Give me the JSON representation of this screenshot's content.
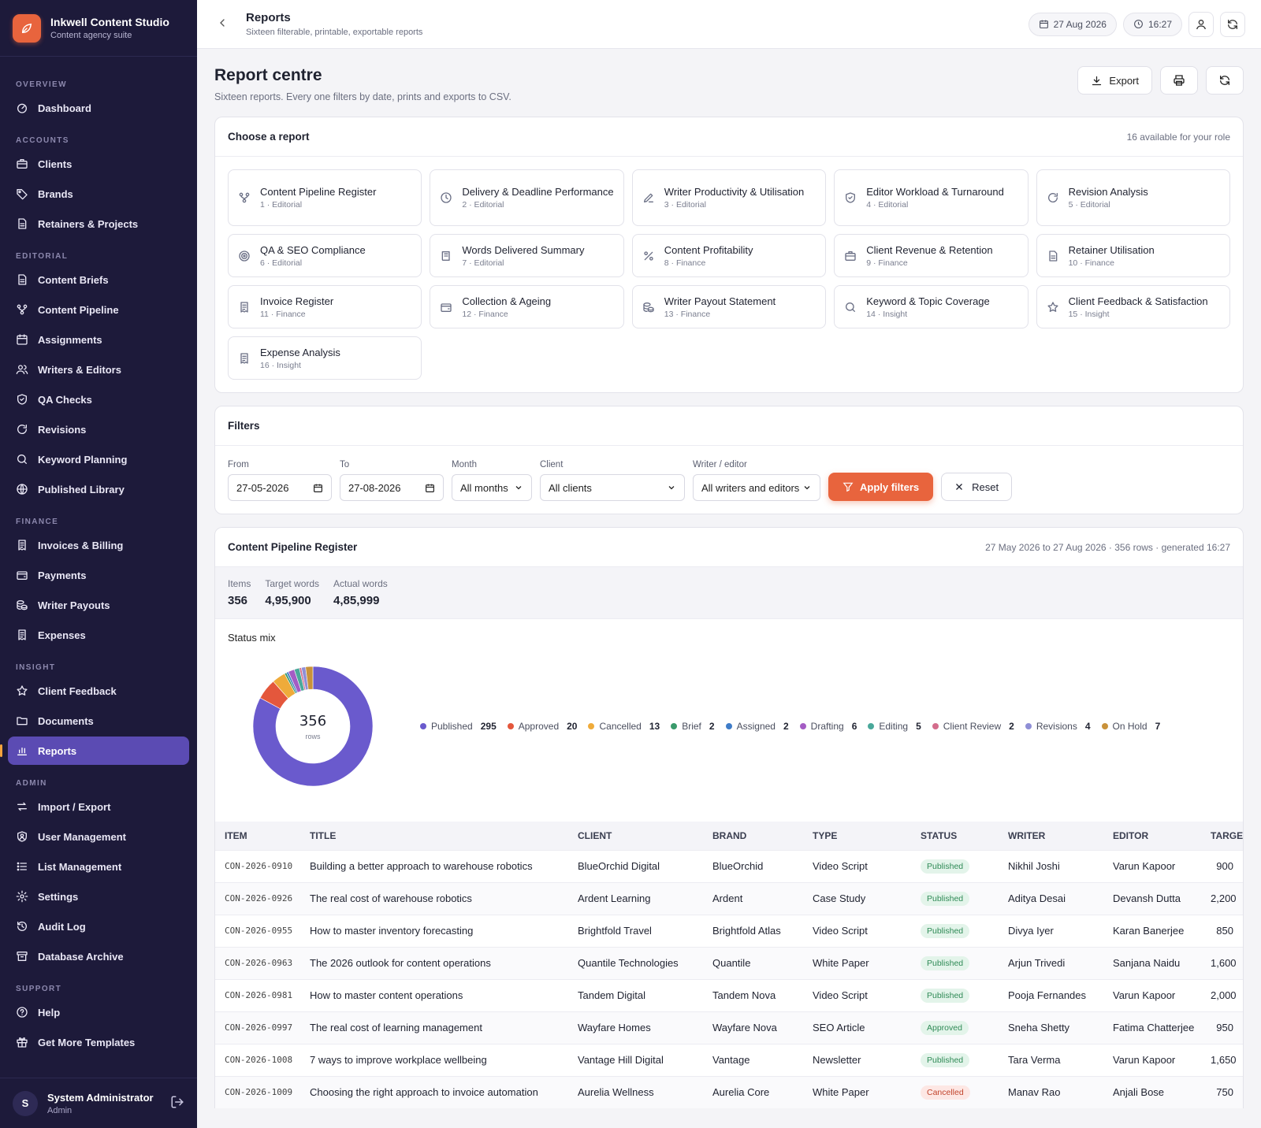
{
  "brand": {
    "title": "Inkwell Content Studio",
    "subtitle": "Content agency suite"
  },
  "nav": {
    "sections": [
      {
        "title": "OVERVIEW",
        "items": [
          {
            "label": "Dashboard",
            "icon": "dashboard-icon"
          }
        ]
      },
      {
        "title": "ACCOUNTS",
        "items": [
          {
            "label": "Clients",
            "icon": "briefcase-icon"
          },
          {
            "label": "Brands",
            "icon": "tag-icon"
          },
          {
            "label": "Retainers & Projects",
            "icon": "document-icon"
          }
        ]
      },
      {
        "title": "EDITORIAL",
        "items": [
          {
            "label": "Content Briefs",
            "icon": "document-icon"
          },
          {
            "label": "Content Pipeline",
            "icon": "workflow-icon"
          },
          {
            "label": "Assignments",
            "icon": "calendar-icon"
          },
          {
            "label": "Writers & Editors",
            "icon": "users-icon"
          },
          {
            "label": "QA Checks",
            "icon": "shield-icon"
          },
          {
            "label": "Revisions",
            "icon": "refresh-icon"
          },
          {
            "label": "Keyword Planning",
            "icon": "search-icon"
          },
          {
            "label": "Published Library",
            "icon": "globe-icon"
          }
        ]
      },
      {
        "title": "FINANCE",
        "items": [
          {
            "label": "Invoices & Billing",
            "icon": "receipt-icon"
          },
          {
            "label": "Payments",
            "icon": "wallet-icon"
          },
          {
            "label": "Writer Payouts",
            "icon": "coins-icon"
          },
          {
            "label": "Expenses",
            "icon": "receipt-icon"
          }
        ]
      },
      {
        "title": "INSIGHT",
        "items": [
          {
            "label": "Client Feedback",
            "icon": "star-icon"
          },
          {
            "label": "Documents",
            "icon": "folder-icon"
          },
          {
            "label": "Reports",
            "icon": "bar-chart-icon",
            "active": true
          }
        ]
      },
      {
        "title": "ADMIN",
        "items": [
          {
            "label": "Import / Export",
            "icon": "arrows-icon"
          },
          {
            "label": "User Management",
            "icon": "user-shield-icon"
          },
          {
            "label": "List Management",
            "icon": "list-icon"
          },
          {
            "label": "Settings",
            "icon": "gear-icon"
          },
          {
            "label": "Audit Log",
            "icon": "history-icon"
          },
          {
            "label": "Database Archive",
            "icon": "archive-icon"
          }
        ]
      },
      {
        "title": "SUPPORT",
        "items": [
          {
            "label": "Help",
            "icon": "help-icon"
          },
          {
            "label": "Get More Templates",
            "icon": "gift-icon"
          }
        ]
      }
    ]
  },
  "user": {
    "initial": "S",
    "name": "System Administrator",
    "role": "Admin"
  },
  "topbar": {
    "title": "Reports",
    "subtitle": "Sixteen filterable, printable, exportable reports",
    "date": "27 Aug 2026",
    "time": "16:27"
  },
  "page": {
    "title": "Report centre",
    "subtitle": "Sixteen reports. Every one filters by date, prints and exports to CSV.",
    "export_label": "Export"
  },
  "chooser": {
    "title": "Choose a report",
    "meta": "16 available for your role",
    "reports": [
      {
        "name": "Content Pipeline Register",
        "meta": "1 · Editorial",
        "icon": "workflow-icon"
      },
      {
        "name": "Delivery & Deadline Performance",
        "meta": "2 · Editorial",
        "icon": "clock-icon"
      },
      {
        "name": "Writer Productivity & Utilisation",
        "meta": "3 · Editorial",
        "icon": "pen-icon"
      },
      {
        "name": "Editor Workload & Turnaround",
        "meta": "4 · Editorial",
        "icon": "shield-icon"
      },
      {
        "name": "Revision Analysis",
        "meta": "5 · Editorial",
        "icon": "refresh-icon"
      },
      {
        "name": "QA & SEO Compliance",
        "meta": "6 · Editorial",
        "icon": "target-icon"
      },
      {
        "name": "Words Delivered Summary",
        "meta": "7 · Editorial",
        "icon": "book-icon"
      },
      {
        "name": "Content Profitability",
        "meta": "8 · Finance",
        "icon": "percent-icon"
      },
      {
        "name": "Client Revenue & Retention",
        "meta": "9 · Finance",
        "icon": "briefcase-icon"
      },
      {
        "name": "Retainer Utilisation",
        "meta": "10 · Finance",
        "icon": "document-icon"
      },
      {
        "name": "Invoice Register",
        "meta": "11 · Finance",
        "icon": "receipt-icon"
      },
      {
        "name": "Collection & Ageing",
        "meta": "12 · Finance",
        "icon": "wallet-icon"
      },
      {
        "name": "Writer Payout Statement",
        "meta": "13 · Finance",
        "icon": "coins-icon"
      },
      {
        "name": "Keyword & Topic Coverage",
        "meta": "14 · Insight",
        "icon": "search-icon"
      },
      {
        "name": "Client Feedback & Satisfaction",
        "meta": "15 · Insight",
        "icon": "star-icon"
      },
      {
        "name": "Expense Analysis",
        "meta": "16 · Insight",
        "icon": "receipt-icon"
      }
    ]
  },
  "filters": {
    "title": "Filters",
    "from_label": "From",
    "from_value": "27-05-2026",
    "to_label": "To",
    "to_value": "27-08-2026",
    "month_label": "Month",
    "month_value": "All months",
    "client_label": "Client",
    "client_value": "All clients",
    "writer_label": "Writer / editor",
    "writer_value": "All writers and editors",
    "apply_label": "Apply filters",
    "reset_label": "Reset"
  },
  "result": {
    "title": "Content Pipeline Register",
    "meta": "27 May 2026 to 27 Aug 2026 · 356 rows · generated 16:27",
    "summary": [
      {
        "label": "Items",
        "value": "356"
      },
      {
        "label": "Target words",
        "value": "4,95,900"
      },
      {
        "label": "Actual words",
        "value": "4,85,999"
      }
    ],
    "chart_title": "Status mix",
    "center_value": "356",
    "center_label": "rows"
  },
  "chart_data": {
    "type": "pie",
    "title": "Status mix",
    "categories": [
      "Published",
      "Approved",
      "Cancelled",
      "Brief",
      "Assigned",
      "Drafting",
      "Editing",
      "Client Review",
      "Revisions",
      "On Hold"
    ],
    "values": [
      295,
      20,
      13,
      2,
      2,
      6,
      5,
      2,
      4,
      7
    ],
    "colors": [
      "#6a5acd",
      "#e4573c",
      "#efab3a",
      "#3a9a6b",
      "#3f7cc8",
      "#a45cc4",
      "#4aa89a",
      "#d46d8c",
      "#8f8fd6",
      "#c9923a"
    ],
    "total": 356,
    "legend": "right"
  },
  "table": {
    "headers": [
      "ITEM",
      "TITLE",
      "CLIENT",
      "BRAND",
      "TYPE",
      "STATUS",
      "WRITER",
      "EDITOR",
      "TARGET"
    ],
    "rows": [
      [
        "CON-2026-0910",
        "Building a better approach to warehouse robotics",
        "BlueOrchid Digital",
        "BlueOrchid",
        "Video Script",
        "Published",
        "Nikhil Joshi",
        "Varun Kapoor",
        "900"
      ],
      [
        "CON-2026-0926",
        "The real cost of warehouse robotics",
        "Ardent Learning",
        "Ardent",
        "Case Study",
        "Published",
        "Aditya Desai",
        "Devansh Dutta",
        "2,200"
      ],
      [
        "CON-2026-0955",
        "How to master inventory forecasting",
        "Brightfold Travel",
        "Brightfold Atlas",
        "Video Script",
        "Published",
        "Divya Iyer",
        "Karan Banerjee",
        "850"
      ],
      [
        "CON-2026-0963",
        "The 2026 outlook for content operations",
        "Quantile Technologies",
        "Quantile",
        "White Paper",
        "Published",
        "Arjun Trivedi",
        "Sanjana Naidu",
        "1,600"
      ],
      [
        "CON-2026-0981",
        "How to master content operations",
        "Tandem Digital",
        "Tandem Nova",
        "Video Script",
        "Published",
        "Pooja Fernandes",
        "Varun Kapoor",
        "2,000"
      ],
      [
        "CON-2026-0997",
        "The real cost of learning management",
        "Wayfare Homes",
        "Wayfare Nova",
        "SEO Article",
        "Approved",
        "Sneha Shetty",
        "Fatima Chatterjee",
        "950"
      ],
      [
        "CON-2026-1008",
        "7 ways to improve workplace wellbeing",
        "Vantage Hill Digital",
        "Vantage",
        "Newsletter",
        "Published",
        "Tara Verma",
        "Varun Kapoor",
        "1,650"
      ],
      [
        "CON-2026-1009",
        "Choosing the right approach to invoice automation",
        "Aurelia Wellness",
        "Aurelia Core",
        "White Paper",
        "Cancelled",
        "Manav Rao",
        "Anjali Bose",
        "750"
      ]
    ]
  }
}
